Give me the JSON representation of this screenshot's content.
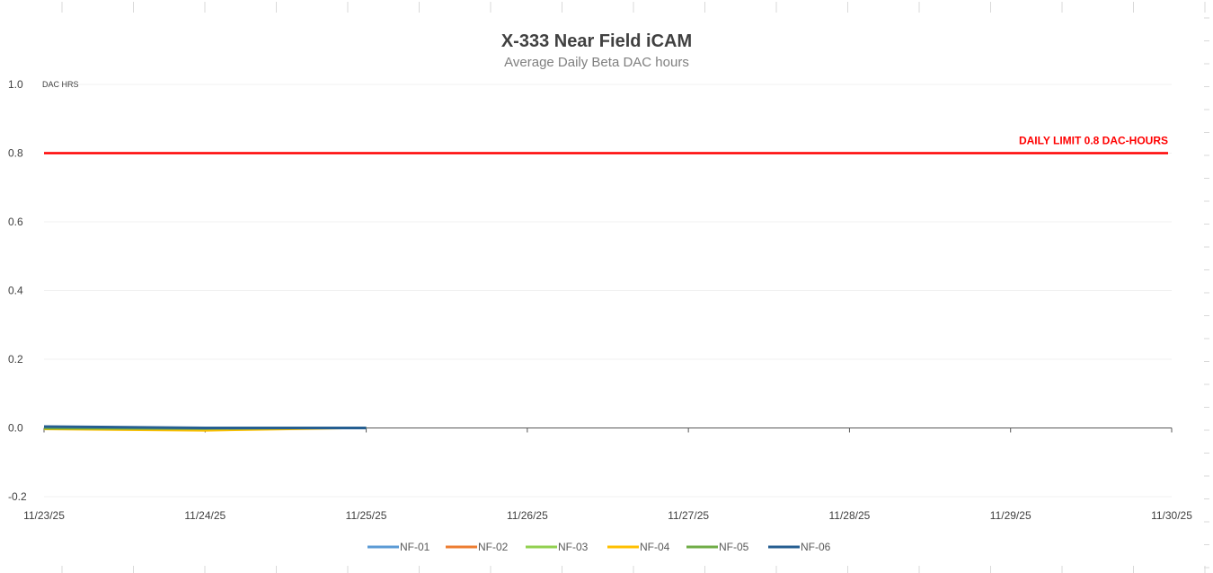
{
  "chart_data": {
    "type": "line",
    "title": "X-333 Near Field iCAM",
    "subtitle": "Average Daily Beta DAC hours",
    "y_unit_label": "DAC HRS",
    "xlabel": "",
    "ylabel": "",
    "x_ticks": [
      "11/23/25",
      "11/24/25",
      "11/25/25",
      "11/26/25",
      "11/27/25",
      "11/28/25",
      "11/29/25",
      "11/30/25"
    ],
    "y_ticks": [
      "1.0",
      "0.8",
      "0.6",
      "0.4",
      "0.2",
      "0.0",
      "-0.2"
    ],
    "ylim": [
      -0.2,
      1.0
    ],
    "grid": true,
    "legend_position": "bottom",
    "limit_line": {
      "value": 0.8,
      "label": "DAILY LIMIT 0.8 DAC-HOURS",
      "color": "#ff0000"
    },
    "series": [
      {
        "name": "NF-01",
        "color": "#5b9bd5",
        "x": [
          "11/23/25",
          "11/24/25",
          "11/25/25"
        ],
        "y": [
          0.0,
          -0.002,
          0.0
        ]
      },
      {
        "name": "NF-02",
        "color": "#ed7d31",
        "x": [
          "11/23/25",
          "11/24/25",
          "11/25/25"
        ],
        "y": [
          0.0,
          -0.002,
          0.0
        ]
      },
      {
        "name": "NF-03",
        "color": "#92d050",
        "x": [
          "11/23/25",
          "11/24/25",
          "11/25/25"
        ],
        "y": [
          -0.002,
          -0.004,
          0.0
        ]
      },
      {
        "name": "NF-04",
        "color": "#ffc000",
        "x": [
          "11/23/25",
          "11/24/25",
          "11/25/25"
        ],
        "y": [
          -0.004,
          -0.008,
          0.0
        ]
      },
      {
        "name": "NF-05",
        "color": "#70ad47",
        "x": [
          "11/23/25",
          "11/24/25",
          "11/25/25"
        ],
        "y": [
          -0.002,
          -0.003,
          0.0
        ]
      },
      {
        "name": "NF-06",
        "color": "#255e91",
        "x": [
          "11/23/25",
          "11/24/25",
          "11/25/25"
        ],
        "y": [
          0.004,
          0.0,
          0.0
        ]
      }
    ]
  }
}
